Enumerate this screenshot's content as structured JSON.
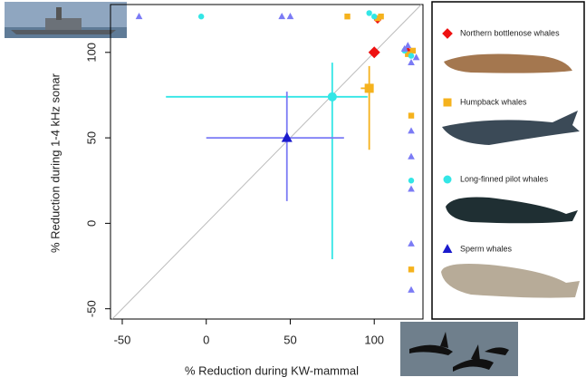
{
  "chart_data": {
    "type": "scatter",
    "x_label": "% Reduction during KW-mammal",
    "y_label": "% Reduction during 1-4 kHz sonar",
    "xlim": [
      -57,
      129
    ],
    "ylim": [
      -56,
      128
    ],
    "xticks": [
      -50,
      0,
      50,
      100
    ],
    "yticks": [
      -50,
      0,
      50,
      100
    ],
    "diagonal": true,
    "series": [
      {
        "name": "Northern bottlenose whales",
        "color": "#ee1111",
        "marker": "diamond",
        "mean": {
          "x": 100,
          "y": 100
        },
        "points": {
          "x": [
            102,
            120
          ],
          "y": [
            119,
            101
          ]
        }
      },
      {
        "name": "Humpback whales",
        "color": "#f5b21d",
        "marker": "square",
        "mean": {
          "x": 97,
          "y": 79,
          "x_low": 92,
          "x_high": 97,
          "y_low": 43,
          "y_high": 92
        },
        "points": {
          "x": [
            84,
            102,
            104,
            122,
            122,
            120,
            123
          ],
          "y": [
            121,
            120,
            121,
            63,
            -27,
            99,
            101
          ]
        }
      },
      {
        "name": "Long-finned pilot whales",
        "color": "#33e6e6",
        "marker": "circle",
        "mean": {
          "x": 75,
          "y": 74,
          "x_low": -24,
          "x_high": 96,
          "y_low": -21,
          "y_high": 94
        },
        "points": {
          "x": [
            -3,
            97,
            100,
            122,
            118,
            122
          ],
          "y": [
            121,
            123,
            121,
            25,
            101,
            98
          ]
        }
      },
      {
        "name": "Sperm whales",
        "color": "#7b7bf5",
        "mean_color": "#1a1acc",
        "marker": "triangle",
        "mean": {
          "x": 48,
          "y": 50,
          "x_low": 0,
          "x_high": 82,
          "y_low": 13,
          "y_high": 77
        },
        "points": {
          "x": [
            -40,
            45,
            50,
            120,
            122,
            122,
            122,
            122,
            122,
            122,
            125,
            118
          ],
          "y": [
            121,
            121,
            121,
            104,
            94,
            54,
            39,
            20,
            -12,
            -39,
            97,
            102
          ]
        }
      }
    ]
  }
}
